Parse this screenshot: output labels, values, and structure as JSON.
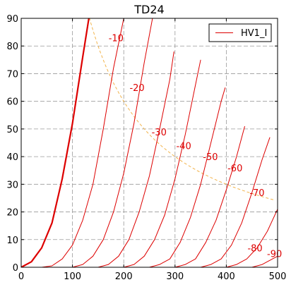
{
  "chart_data": {
    "type": "line",
    "title": "TD24",
    "xlabel": "",
    "ylabel": "",
    "xlim": [
      0,
      500
    ],
    "ylim": [
      0,
      90
    ],
    "xticks": [
      0,
      100,
      200,
      300,
      400,
      500
    ],
    "yticks": [
      0,
      10,
      20,
      30,
      40,
      50,
      60,
      70,
      80,
      90
    ],
    "grid": true,
    "legend": {
      "position": "top-right",
      "entries": [
        "HV1_I"
      ]
    },
    "line_color": "#dd0000",
    "dissipation_color": "#f2b34a",
    "series": [
      {
        "name": "HV1_I",
        "label": "",
        "points": [
          [
            0,
            0
          ],
          [
            20,
            2
          ],
          [
            40,
            7
          ],
          [
            60,
            16
          ],
          [
            80,
            32
          ],
          [
            100,
            52
          ],
          [
            120,
            76
          ],
          [
            132,
            90
          ]
        ]
      },
      {
        "label": "-10",
        "points": [
          [
            40,
            0
          ],
          [
            60,
            0.5
          ],
          [
            80,
            3
          ],
          [
            100,
            8
          ],
          [
            120,
            17
          ],
          [
            140,
            30
          ],
          [
            160,
            50
          ],
          [
            180,
            72
          ],
          [
            200,
            90
          ]
        ]
      },
      {
        "label": "-20",
        "points": [
          [
            100,
            0
          ],
          [
            120,
            1
          ],
          [
            140,
            4
          ],
          [
            160,
            10
          ],
          [
            180,
            20
          ],
          [
            200,
            34
          ],
          [
            220,
            52
          ],
          [
            240,
            74
          ],
          [
            256,
            90
          ]
        ]
      },
      {
        "label": "-30",
        "points": [
          [
            150,
            0
          ],
          [
            170,
            1
          ],
          [
            190,
            4
          ],
          [
            210,
            10
          ],
          [
            230,
            20
          ],
          [
            250,
            33
          ],
          [
            270,
            50
          ],
          [
            290,
            68
          ],
          [
            298,
            78
          ]
        ]
      },
      {
        "label": "-40",
        "points": [
          [
            200,
            0
          ],
          [
            220,
            1
          ],
          [
            240,
            4
          ],
          [
            260,
            10
          ],
          [
            280,
            19
          ],
          [
            300,
            32
          ],
          [
            320,
            48
          ],
          [
            340,
            66
          ],
          [
            350,
            75
          ]
        ]
      },
      {
        "label": "-50",
        "points": [
          [
            250,
            0
          ],
          [
            270,
            1
          ],
          [
            290,
            3
          ],
          [
            310,
            9
          ],
          [
            330,
            18
          ],
          [
            350,
            30
          ],
          [
            370,
            45
          ],
          [
            390,
            60
          ],
          [
            398,
            65
          ]
        ]
      },
      {
        "label": "-60",
        "points": [
          [
            300,
            0
          ],
          [
            320,
            1
          ],
          [
            340,
            3
          ],
          [
            360,
            9
          ],
          [
            380,
            17
          ],
          [
            400,
            28
          ],
          [
            420,
            40
          ],
          [
            436,
            51
          ]
        ]
      },
      {
        "label": "-70",
        "points": [
          [
            350,
            0
          ],
          [
            370,
            1
          ],
          [
            390,
            3
          ],
          [
            410,
            8
          ],
          [
            430,
            16
          ],
          [
            450,
            27
          ],
          [
            470,
            39
          ],
          [
            485,
            47
          ]
        ]
      },
      {
        "label": "-80",
        "points": [
          [
            400,
            0
          ],
          [
            420,
            1
          ],
          [
            440,
            3
          ],
          [
            460,
            7
          ],
          [
            480,
            13
          ],
          [
            500,
            21
          ]
        ]
      },
      {
        "label": "-90",
        "points": [
          [
            450,
            0
          ],
          [
            470,
            1
          ],
          [
            490,
            3
          ],
          [
            500,
            4
          ]
        ]
      }
    ],
    "curve_labels": [
      {
        "text": "-10",
        "x": 185,
        "y": 83
      },
      {
        "text": "-20",
        "x": 226,
        "y": 65
      },
      {
        "text": "-30",
        "x": 269,
        "y": 49
      },
      {
        "text": "-40",
        "x": 317,
        "y": 44
      },
      {
        "text": "-50",
        "x": 369,
        "y": 40
      },
      {
        "text": "-60",
        "x": 417,
        "y": 36
      },
      {
        "text": "-70",
        "x": 460,
        "y": 27
      },
      {
        "text": "-80",
        "x": 456,
        "y": 7
      },
      {
        "text": "-90",
        "x": 494,
        "y": 5
      }
    ],
    "dissipation_curve": {
      "watts": 12,
      "x_range": [
        133,
        495
      ]
    }
  }
}
